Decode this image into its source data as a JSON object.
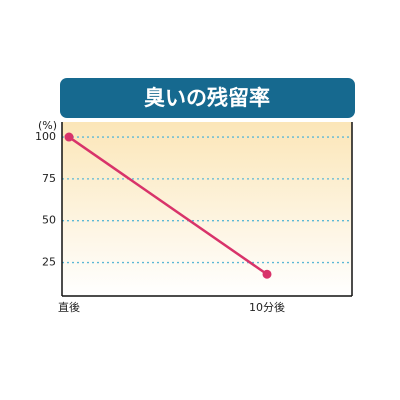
{
  "chart_data": {
    "type": "line",
    "title": "臭いの残留率",
    "y_label": "(%)",
    "categories": [
      "直後",
      "10分後"
    ],
    "values": [
      100,
      18
    ],
    "color": "#d8336a",
    "ylim": [
      5,
      109
    ],
    "yticks": [
      25,
      50,
      75,
      100
    ],
    "grid": true
  }
}
